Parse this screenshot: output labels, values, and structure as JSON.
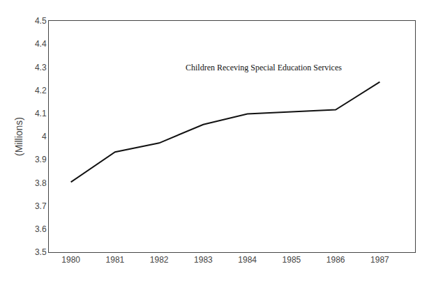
{
  "chart_data": {
    "type": "line",
    "x": [
      1980,
      1981,
      1982,
      1983,
      1984,
      1985,
      1986,
      1987
    ],
    "values": [
      3.803,
      3.933,
      3.972,
      4.052,
      4.098,
      4.106,
      4.116,
      4.236
    ],
    "color": "#111111",
    "xlim": [
      1979.5,
      1987.8
    ],
    "xticks": [
      1980,
      1981,
      1982,
      1983,
      1984,
      1985,
      1986,
      1987
    ],
    "ylim": [
      3.5,
      4.5
    ],
    "yticks": [
      3.5,
      3.6,
      3.7,
      3.8,
      3.9,
      4,
      4.1,
      4.2,
      4.3,
      4.4,
      4.5
    ],
    "y_label": "(Millions)",
    "annotations": [
      "Children Receving Special Education Services"
    ],
    "grid": false
  }
}
